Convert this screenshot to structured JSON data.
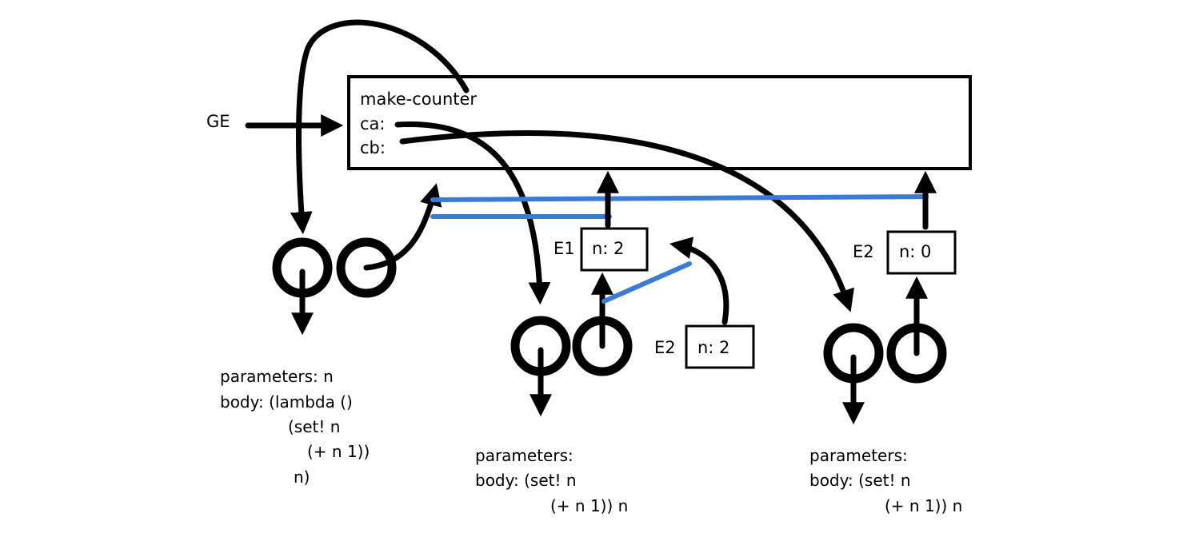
{
  "global_env": {
    "label": "GE",
    "bindings": [
      "make-counter",
      "ca:",
      "cb:"
    ]
  },
  "frames": [
    {
      "label": "E1",
      "binding": "n: 2"
    },
    {
      "label": "E2",
      "binding": "n: 2"
    },
    {
      "label": "E2",
      "binding": "n: 0"
    }
  ],
  "procedures": [
    {
      "lines": [
        "parameters: n",
        "body: (lambda ()",
        "(set! n",
        "(+ n 1))",
        "n)"
      ]
    },
    {
      "lines": [
        "parameters:",
        "body: (set! n",
        "(+ n 1)) n"
      ]
    },
    {
      "lines": [
        "parameters:",
        "body: (set! n",
        "(+ n 1)) n"
      ]
    }
  ],
  "colors": {
    "ink": "#000000",
    "env_link": "#3a7bd5",
    "background": "#ffffff"
  }
}
